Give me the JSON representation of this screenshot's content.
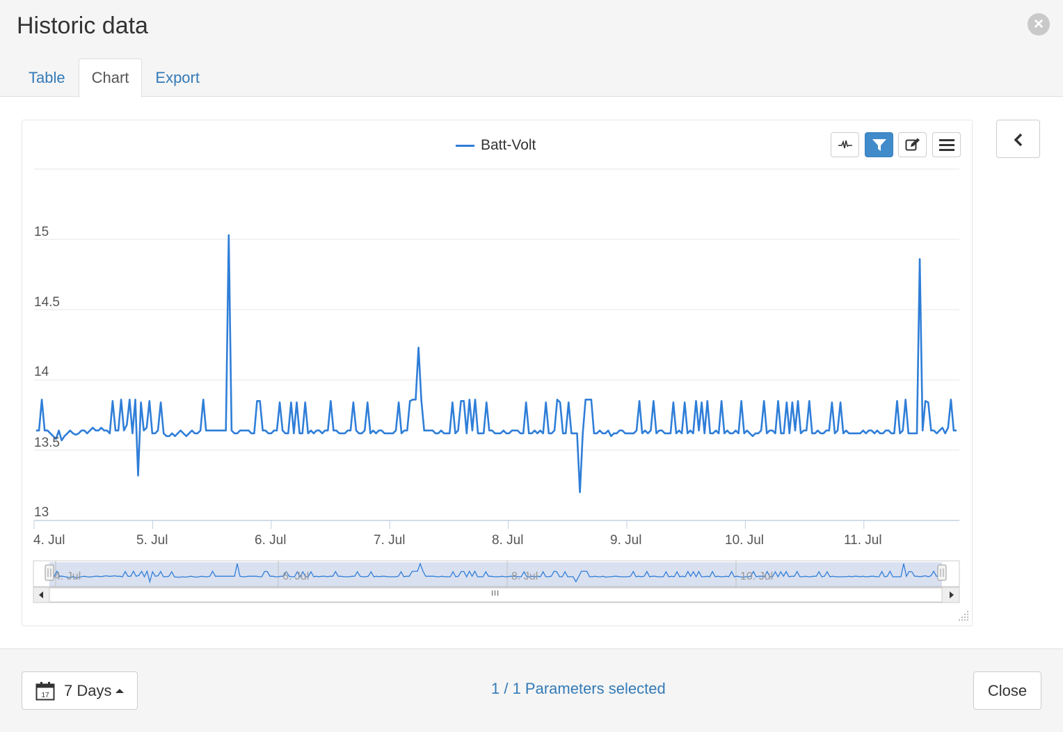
{
  "dialog": {
    "title": "Historic data",
    "close_icon": "close-icon"
  },
  "tabs": [
    {
      "label": "Table",
      "active": false
    },
    {
      "label": "Chart",
      "active": true
    },
    {
      "label": "Export",
      "active": false
    }
  ],
  "toolbar": {
    "buttons": [
      {
        "icon": "line-chart-icon",
        "active": false
      },
      {
        "icon": "filter-icon",
        "active": true
      },
      {
        "icon": "edit-icon",
        "active": false
      },
      {
        "icon": "menu-icon",
        "active": false
      }
    ],
    "collapse_icon": "chevron-left-icon",
    "accent": "#428bca"
  },
  "chart_data": {
    "type": "line",
    "title": "",
    "xlabel": "",
    "ylabel": "",
    "ylim": [
      13,
      15.5
    ],
    "yticks": [
      "13",
      "13.5",
      "14",
      "14.5",
      "15"
    ],
    "xticks": [
      "4. Jul",
      "5. Jul",
      "6. Jul",
      "7. Jul",
      "8. Jul",
      "9. Jul",
      "10. Jul",
      "11. Jul"
    ],
    "navigator_ticks": [
      "4. Jul",
      "6. Jul",
      "8. Jul",
      "10. Jul"
    ],
    "legend_position": "top-center",
    "grid": true,
    "color": "#2f7ed8",
    "series": [
      {
        "name": "Batt-Volt",
        "x_start": "2024-07-04T00:00",
        "x_end": "2024-07-11T20:00",
        "values": [
          13.64,
          13.64,
          13.86,
          13.64,
          13.64,
          13.62,
          13.6,
          13.58,
          13.64,
          13.57,
          13.6,
          13.62,
          13.64,
          13.62,
          13.61,
          13.62,
          13.64,
          13.64,
          13.62,
          13.64,
          13.66,
          13.64,
          13.64,
          13.66,
          13.64,
          13.64,
          13.62,
          13.85,
          13.64,
          13.64,
          13.86,
          13.64,
          13.68,
          13.86,
          13.62,
          13.86,
          13.32,
          13.84,
          13.64,
          13.66,
          13.85,
          13.62,
          13.62,
          13.64,
          13.84,
          13.62,
          13.6,
          13.6,
          13.62,
          13.6,
          13.62,
          13.64,
          13.62,
          13.6,
          13.62,
          13.64,
          13.62,
          13.62,
          13.64,
          13.86,
          13.64,
          13.64,
          13.64,
          13.64,
          13.64,
          13.64,
          13.64,
          13.64,
          15.03,
          13.64,
          13.62,
          13.62,
          13.64,
          13.64,
          13.64,
          13.64,
          13.62,
          13.62,
          13.85,
          13.85,
          13.64,
          13.64,
          13.62,
          13.62,
          13.64,
          13.64,
          13.84,
          13.64,
          13.62,
          13.62,
          13.84,
          13.62,
          13.84,
          13.62,
          13.62,
          13.84,
          13.62,
          13.64,
          13.62,
          13.64,
          13.64,
          13.62,
          13.64,
          13.64,
          13.85,
          13.64,
          13.64,
          13.62,
          13.62,
          13.62,
          13.64,
          13.64,
          13.84,
          13.64,
          13.62,
          13.62,
          13.64,
          13.84,
          13.62,
          13.64,
          13.62,
          13.64,
          13.64,
          13.62,
          13.62,
          13.62,
          13.62,
          13.64,
          13.84,
          13.62,
          13.64,
          13.64,
          13.85,
          13.86,
          13.86,
          14.23,
          13.86,
          13.64,
          13.64,
          13.64,
          13.64,
          13.62,
          13.62,
          13.64,
          13.62,
          13.62,
          13.62,
          13.84,
          13.62,
          13.64,
          13.85,
          13.85,
          13.62,
          13.86,
          13.64,
          13.86,
          13.62,
          13.62,
          13.62,
          13.84,
          13.64,
          13.64,
          13.62,
          13.62,
          13.62,
          13.64,
          13.62,
          13.62,
          13.64,
          13.64,
          13.64,
          13.62,
          13.62,
          13.84,
          13.62,
          13.62,
          13.64,
          13.62,
          13.64,
          13.62,
          13.84,
          13.62,
          13.62,
          13.64,
          13.86,
          13.84,
          13.62,
          13.62,
          13.84,
          13.62,
          13.62,
          13.62,
          13.2,
          13.62,
          13.86,
          13.86,
          13.86,
          13.62,
          13.62,
          13.64,
          13.62,
          13.62,
          13.64,
          13.6,
          13.62,
          13.62,
          13.64,
          13.64,
          13.62,
          13.62,
          13.62,
          13.62,
          13.64,
          13.85,
          13.62,
          13.64,
          13.62,
          13.64,
          13.85,
          13.62,
          13.64,
          13.64,
          13.62,
          13.62,
          13.62,
          13.84,
          13.62,
          13.64,
          13.62,
          13.84,
          13.62,
          13.64,
          13.62,
          13.85,
          13.64,
          13.84,
          13.62,
          13.85,
          13.62,
          13.62,
          13.64,
          13.62,
          13.85,
          13.62,
          13.64,
          13.62,
          13.62,
          13.64,
          13.62,
          13.85,
          13.62,
          13.64,
          13.62,
          13.6,
          13.62,
          13.62,
          13.64,
          13.85,
          13.62,
          13.64,
          13.64,
          13.62,
          13.85,
          13.62,
          13.62,
          13.84,
          13.62,
          13.84,
          13.64,
          13.85,
          13.62,
          13.64,
          13.64,
          13.85,
          13.62,
          13.62,
          13.64,
          13.62,
          13.62,
          13.64,
          13.64,
          13.84,
          13.62,
          13.64,
          13.84,
          13.62,
          13.64,
          13.62,
          13.62,
          13.62,
          13.62,
          13.62,
          13.64,
          13.62,
          13.64,
          13.64,
          13.62,
          13.64,
          13.62,
          13.62,
          13.64,
          13.64,
          13.62,
          13.62,
          13.85,
          13.62,
          13.64,
          13.86,
          13.62,
          13.62,
          13.62,
          13.62,
          14.86,
          13.64,
          13.85,
          13.84,
          13.64,
          13.64,
          13.62,
          13.64,
          13.66,
          13.62,
          13.66,
          13.86,
          13.64,
          13.64
        ]
      }
    ]
  },
  "navigator": {
    "scroll_grip": "III"
  },
  "footer": {
    "range_label": "7 Days",
    "calendar_icon": "calendar-icon",
    "calendar_day": "17",
    "params_text": "1 / 1 Parameters selected",
    "close_label": "Close"
  }
}
